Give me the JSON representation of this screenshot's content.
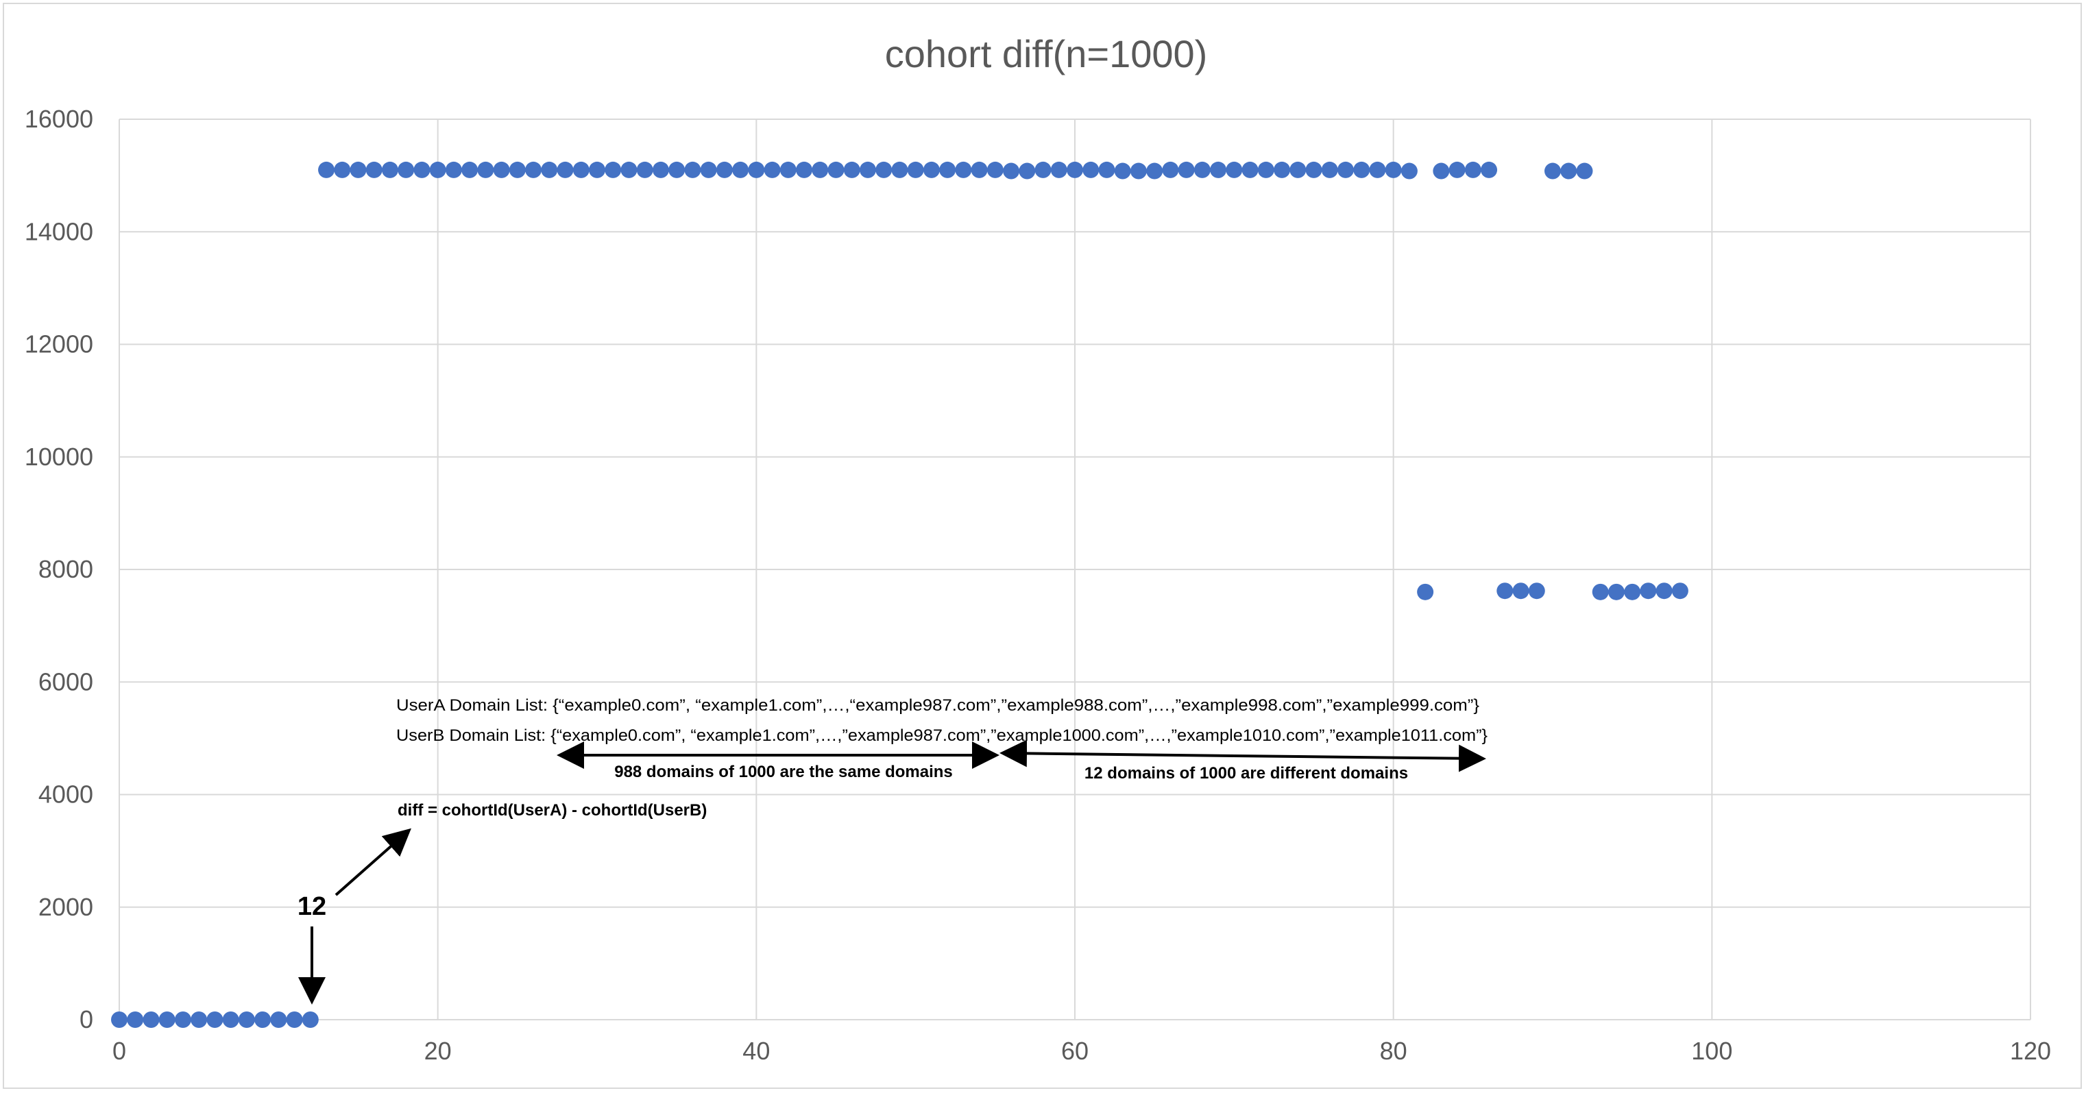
{
  "chart_data": {
    "type": "scatter",
    "title": "cohort diff(n=1000)",
    "xlabel": "",
    "ylabel": "",
    "xlim": [
      0,
      120
    ],
    "ylim": [
      0,
      16000
    ],
    "x_ticks": [
      0,
      20,
      40,
      60,
      80,
      100,
      120
    ],
    "y_ticks": [
      0,
      2000,
      4000,
      6000,
      8000,
      10000,
      12000,
      14000,
      16000
    ],
    "grid": true,
    "legend": "none",
    "marker_color": "#4472c4",
    "series": [
      {
        "points": [
          [
            0,
            0
          ],
          [
            1,
            0
          ],
          [
            2,
            0
          ],
          [
            3,
            0
          ],
          [
            4,
            0
          ],
          [
            5,
            0
          ],
          [
            6,
            0
          ],
          [
            7,
            0
          ],
          [
            8,
            0
          ],
          [
            9,
            0
          ],
          [
            10,
            0
          ],
          [
            11,
            0
          ],
          [
            12,
            0
          ],
          [
            13,
            15100
          ],
          [
            14,
            15100
          ],
          [
            15,
            15100
          ],
          [
            16,
            15100
          ],
          [
            17,
            15100
          ],
          [
            18,
            15100
          ],
          [
            19,
            15100
          ],
          [
            20,
            15100
          ],
          [
            21,
            15100
          ],
          [
            22,
            15100
          ],
          [
            23,
            15100
          ],
          [
            24,
            15100
          ],
          [
            25,
            15100
          ],
          [
            26,
            15100
          ],
          [
            27,
            15100
          ],
          [
            28,
            15100
          ],
          [
            29,
            15100
          ],
          [
            30,
            15100
          ],
          [
            31,
            15100
          ],
          [
            32,
            15100
          ],
          [
            33,
            15100
          ],
          [
            34,
            15100
          ],
          [
            35,
            15100
          ],
          [
            36,
            15100
          ],
          [
            37,
            15100
          ],
          [
            38,
            15100
          ],
          [
            39,
            15100
          ],
          [
            40,
            15100
          ],
          [
            41,
            15100
          ],
          [
            42,
            15100
          ],
          [
            43,
            15100
          ],
          [
            44,
            15100
          ],
          [
            45,
            15100
          ],
          [
            46,
            15100
          ],
          [
            47,
            15100
          ],
          [
            48,
            15100
          ],
          [
            49,
            15100
          ],
          [
            50,
            15100
          ],
          [
            51,
            15100
          ],
          [
            52,
            15100
          ],
          [
            53,
            15100
          ],
          [
            54,
            15100
          ],
          [
            55,
            15100
          ],
          [
            56,
            15080
          ],
          [
            57,
            15080
          ],
          [
            58,
            15100
          ],
          [
            59,
            15100
          ],
          [
            60,
            15100
          ],
          [
            61,
            15100
          ],
          [
            62,
            15100
          ],
          [
            63,
            15080
          ],
          [
            64,
            15080
          ],
          [
            65,
            15080
          ],
          [
            66,
            15100
          ],
          [
            67,
            15100
          ],
          [
            68,
            15100
          ],
          [
            69,
            15100
          ],
          [
            70,
            15100
          ],
          [
            71,
            15100
          ],
          [
            72,
            15100
          ],
          [
            73,
            15100
          ],
          [
            74,
            15100
          ],
          [
            75,
            15100
          ],
          [
            76,
            15100
          ],
          [
            77,
            15100
          ],
          [
            78,
            15100
          ],
          [
            79,
            15100
          ],
          [
            80,
            15100
          ],
          [
            81,
            15080
          ],
          [
            82,
            7600
          ],
          [
            83,
            15080
          ],
          [
            84,
            15100
          ],
          [
            85,
            15100
          ],
          [
            86,
            15100
          ],
          [
            87,
            7620
          ],
          [
            88,
            7620
          ],
          [
            89,
            7620
          ],
          [
            90,
            15080
          ],
          [
            91,
            15080
          ],
          [
            92,
            15080
          ],
          [
            93,
            7600
          ],
          [
            94,
            7600
          ],
          [
            95,
            7600
          ],
          [
            96,
            7620
          ],
          [
            97,
            7620
          ],
          [
            98,
            7620
          ]
        ]
      }
    ],
    "annotations": {
      "usera_list": "UserA Domain List: {“example0.com”, “example1.com”,…,“example987.com”,”example988.com”,…,”example998.com”,”example999.com”}",
      "userb_list": "UserB Domain List: {“example0.com”, “example1.com”,…,”example987.com”,”example1000.com”,…,”example1010.com”,”example1011.com”}",
      "same_domains": "988 domains of 1000 are the same domains",
      "different_domains": "12 domains of 1000 are different domains",
      "diff_formula": "diff = cohortId(UserA) - cohortId(UserB)",
      "twelve_label": "12"
    }
  }
}
